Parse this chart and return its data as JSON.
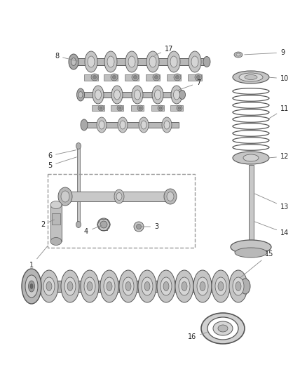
{
  "bg_color": "#ffffff",
  "lc": "#555555",
  "label_color": "#222222",
  "label_fs": 7,
  "fig_w": 4.38,
  "fig_h": 5.33,
  "dpi": 100
}
